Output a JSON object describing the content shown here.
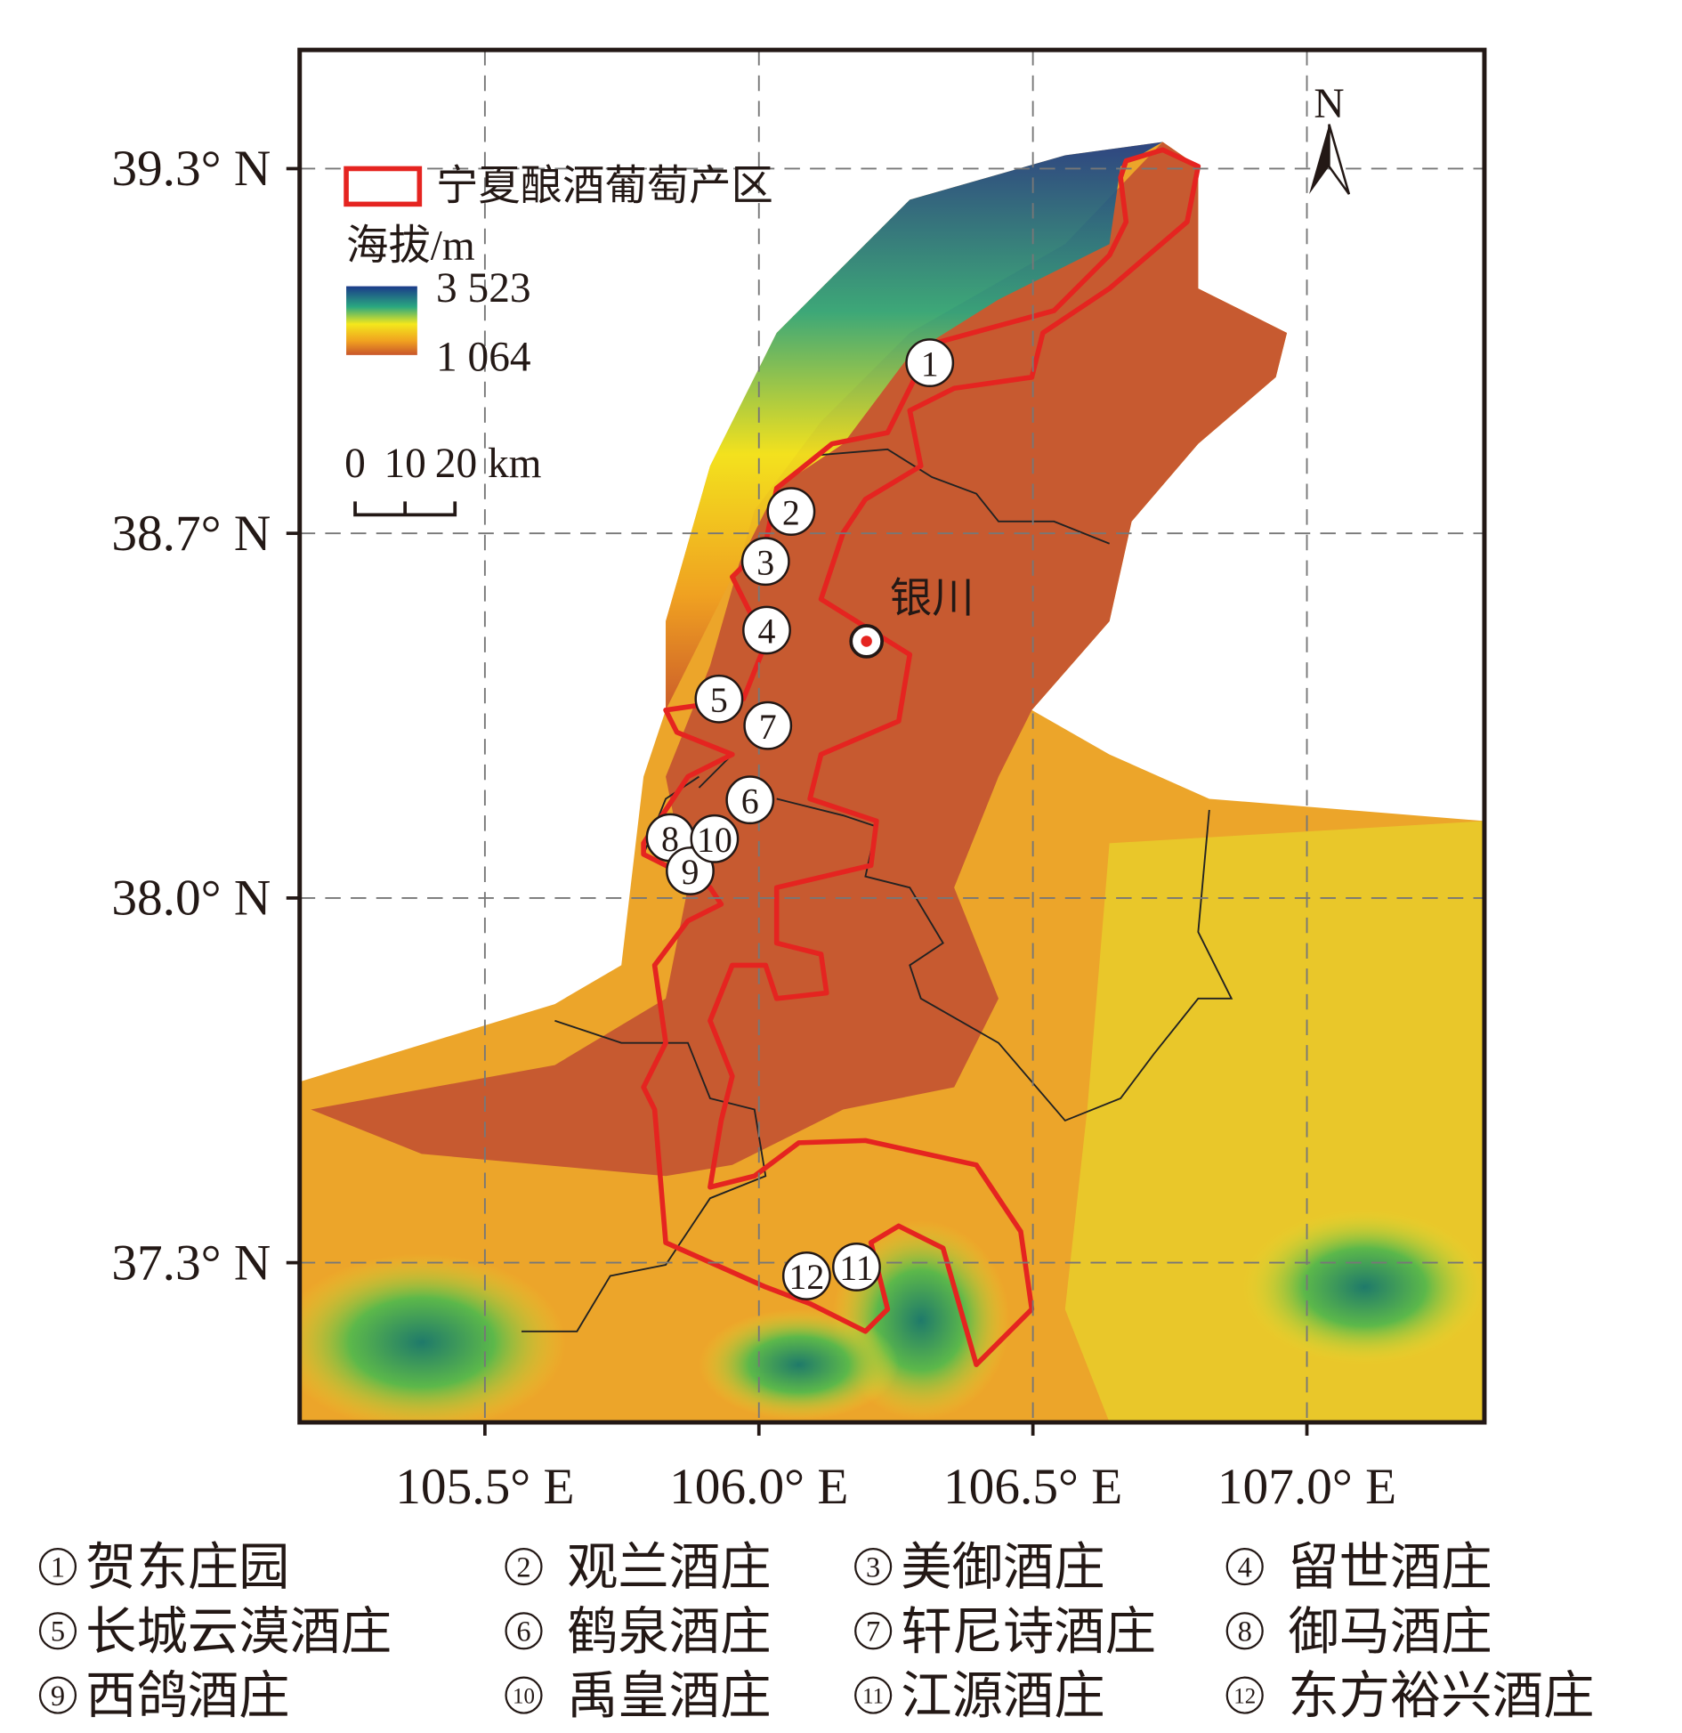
{
  "map": {
    "lat_ticks": [
      {
        "value": 39.3,
        "label": "39.3° N"
      },
      {
        "value": 38.7,
        "label": "38.7° N"
      },
      {
        "value": 38.0,
        "label": "38.0° N"
      },
      {
        "value": 37.3,
        "label": "37.3° N"
      }
    ],
    "lon_ticks": [
      {
        "value": 105.5,
        "label": "105.5° E"
      },
      {
        "value": 106.0,
        "label": "106.0° E"
      },
      {
        "value": 106.5,
        "label": "106.5° E"
      },
      {
        "value": 107.0,
        "label": "107.0° E"
      }
    ],
    "legend": {
      "region": "宁夏酿酒葡萄产区",
      "elevation_title": "海拔/m",
      "elevation_max": {
        "value": 3523,
        "label": "3 523"
      },
      "elevation_min": {
        "value": 1064,
        "label": "1 064"
      }
    },
    "scale_bar": [
      "0",
      "10",
      "20 km"
    ],
    "north": "N",
    "city": "银川",
    "wineries": [
      {
        "id": "1",
        "name": "贺东庄园"
      },
      {
        "id": "2",
        "name": "观兰酒庄"
      },
      {
        "id": "3",
        "name": "美御酒庄"
      },
      {
        "id": "4",
        "name": "留世酒庄"
      },
      {
        "id": "5",
        "name": "长城云漠酒庄"
      },
      {
        "id": "6",
        "name": "鹤泉酒庄"
      },
      {
        "id": "7",
        "name": "轩尼诗酒庄"
      },
      {
        "id": "8",
        "name": "御马酒庄"
      },
      {
        "id": "9",
        "name": "西鸽酒庄"
      },
      {
        "id": "10",
        "name": "禹皇酒庄"
      },
      {
        "id": "11",
        "name": "江源酒庄"
      },
      {
        "id": "12",
        "name": "东方裕兴酒庄"
      }
    ]
  }
}
